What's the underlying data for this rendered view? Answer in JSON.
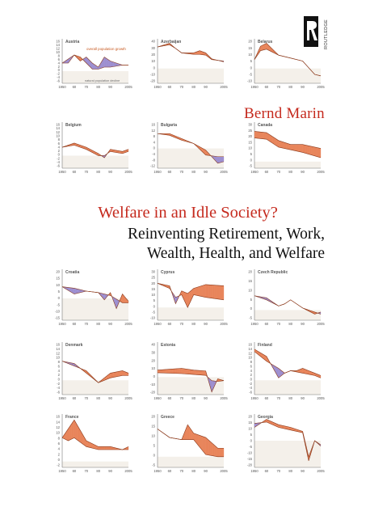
{
  "cover": {
    "author": "Bernd Marin",
    "title": "Welfare in an Idle Society?",
    "subtitle_line1": "Reinventing Retirement, Work,",
    "subtitle_line2": "Wealth, Health, and Welfare",
    "publisher": "ROUTLEDGE",
    "colors": {
      "accent": "#c52a1e",
      "orange": "#e8845a",
      "purple": "#9d8fd0",
      "line": "#8a3b1e",
      "axis": "#777777",
      "label": "#555555"
    }
  },
  "charts": [
    {
      "name": "Austria",
      "ylabels": [
        "16",
        "14",
        "12",
        "10",
        "8",
        "6",
        "4",
        "2",
        "0",
        "-2",
        "-4",
        "-6"
      ],
      "xlabels": [
        "1950",
        "60",
        "70",
        "80",
        "90",
        "2005"
      ],
      "ymin": -6,
      "ymax": 16,
      "annotations": [
        "overall population growth",
        "natural population decline"
      ],
      "s1": [
        [
          1950,
          4
        ],
        [
          1955,
          6
        ],
        [
          1960,
          8
        ],
        [
          1965,
          5
        ],
        [
          1970,
          7
        ],
        [
          1975,
          4
        ],
        [
          1980,
          2
        ],
        [
          1985,
          7
        ],
        [
          1990,
          5
        ],
        [
          2000,
          3
        ],
        [
          2005,
          3
        ]
      ],
      "s2": [
        [
          1950,
          4
        ],
        [
          1955,
          4
        ],
        [
          1960,
          8
        ],
        [
          1965,
          7
        ],
        [
          1970,
          4
        ],
        [
          1975,
          1
        ],
        [
          1980,
          1
        ],
        [
          1985,
          2
        ],
        [
          1990,
          2
        ],
        [
          2000,
          3
        ],
        [
          2005,
          3
        ]
      ]
    },
    {
      "name": "Azerbaijan",
      "ylabels": [
        "40",
        "30",
        "20",
        "10",
        "0",
        "-10",
        "-20"
      ],
      "xlabels": [
        "1950",
        "60",
        "70",
        "80",
        "90",
        "2005"
      ],
      "ymin": -20,
      "ymax": 40,
      "s1": [
        [
          1950,
          29
        ],
        [
          1960,
          32
        ],
        [
          1965,
          27
        ],
        [
          1970,
          21
        ],
        [
          1980,
          19
        ],
        [
          1985,
          19
        ],
        [
          1990,
          18
        ],
        [
          1995,
          12
        ],
        [
          2005,
          10
        ]
      ],
      "s2": [
        [
          1950,
          29
        ],
        [
          1960,
          34
        ],
        [
          1965,
          27
        ],
        [
          1970,
          21
        ],
        [
          1980,
          21
        ],
        [
          1985,
          24
        ],
        [
          1990,
          21
        ],
        [
          1995,
          13
        ],
        [
          2005,
          9
        ]
      ]
    },
    {
      "name": "Belarus",
      "ylabels": [
        "20",
        "15",
        "10",
        "5",
        "0",
        "-5",
        "-10"
      ],
      "xlabels": [
        "1950",
        "60",
        "70",
        "80",
        "90",
        "2005"
      ],
      "ymin": -10,
      "ymax": 20,
      "s1": [
        [
          1950,
          6
        ],
        [
          1955,
          12
        ],
        [
          1960,
          13
        ],
        [
          1970,
          9
        ],
        [
          1980,
          7
        ],
        [
          1990,
          5
        ],
        [
          2000,
          -4
        ],
        [
          2005,
          -5
        ]
      ],
      "s2": [
        [
          1950,
          6
        ],
        [
          1955,
          15
        ],
        [
          1960,
          17
        ],
        [
          1970,
          9
        ],
        [
          1980,
          7
        ],
        [
          1990,
          5
        ],
        [
          2000,
          -4
        ],
        [
          2005,
          -5
        ]
      ]
    },
    {
      "name": "Belgium",
      "ylabels": [
        "16",
        "14",
        "12",
        "10",
        "8",
        "6",
        "4",
        "2",
        "0",
        "-2",
        "-4",
        "-6"
      ],
      "xlabels": [
        "1950",
        "60",
        "70",
        "80",
        "90",
        "2005"
      ],
      "ymin": -6,
      "ymax": 16,
      "s1": [
        [
          1950,
          4
        ],
        [
          1960,
          5
        ],
        [
          1970,
          3
        ],
        [
          1980,
          0
        ],
        [
          1985,
          0
        ],
        [
          1990,
          2
        ],
        [
          2000,
          1
        ],
        [
          2005,
          2
        ]
      ],
      "s2": [
        [
          1950,
          4
        ],
        [
          1960,
          6
        ],
        [
          1970,
          4
        ],
        [
          1980,
          1
        ],
        [
          1985,
          -1
        ],
        [
          1990,
          3
        ],
        [
          2000,
          2
        ],
        [
          2005,
          3
        ]
      ]
    },
    {
      "name": "Bulgaria",
      "ylabels": [
        "16",
        "12",
        "8",
        "4",
        "0",
        "-4",
        "-8",
        "-12"
      ],
      "xlabels": [
        "1950",
        "60",
        "70",
        "80",
        "90",
        "2005"
      ],
      "ymin": -12,
      "ymax": 16,
      "s1": [
        [
          1950,
          9
        ],
        [
          1960,
          8
        ],
        [
          1970,
          5
        ],
        [
          1980,
          3
        ],
        [
          1990,
          -4
        ],
        [
          2000,
          -5
        ],
        [
          2005,
          -5
        ]
      ],
      "s2": [
        [
          1950,
          9
        ],
        [
          1960,
          9
        ],
        [
          1970,
          6
        ],
        [
          1980,
          3
        ],
        [
          1990,
          -1
        ],
        [
          2000,
          -9
        ],
        [
          2005,
          -8
        ]
      ]
    },
    {
      "name": "Canada",
      "ylabels": [
        "30",
        "25",
        "20",
        "15",
        "10",
        "5",
        "0",
        "-5"
      ],
      "xlabels": [
        "1950",
        "60",
        "70",
        "80",
        "90",
        "2005"
      ],
      "ymin": -5,
      "ymax": 30,
      "s1": [
        [
          1950,
          18
        ],
        [
          1960,
          17
        ],
        [
          1970,
          11
        ],
        [
          1980,
          9
        ],
        [
          1990,
          7
        ],
        [
          2005,
          3
        ]
      ],
      "s2": [
        [
          1950,
          23
        ],
        [
          1960,
          22
        ],
        [
          1970,
          16
        ],
        [
          1980,
          13
        ],
        [
          1990,
          13
        ],
        [
          2005,
          10
        ]
      ]
    },
    {
      "name": "Croatia",
      "ylabels": [
        "20",
        "15",
        "10",
        "5",
        "0",
        "-5",
        "-10",
        "-15"
      ],
      "xlabels": [
        "1950",
        "60",
        "70",
        "80",
        "90",
        "2005"
      ],
      "ymin": -15,
      "ymax": 20,
      "s1": [
        [
          1950,
          8
        ],
        [
          1960,
          7
        ],
        [
          1970,
          5
        ],
        [
          1980,
          4
        ],
        [
          1990,
          2
        ],
        [
          2000,
          -3
        ],
        [
          2005,
          -3
        ]
      ],
      "s2": [
        [
          1950,
          8
        ],
        [
          1960,
          3
        ],
        [
          1970,
          5
        ],
        [
          1980,
          4
        ],
        [
          1985,
          -1
        ],
        [
          1990,
          4
        ],
        [
          1995,
          -7
        ],
        [
          2000,
          3
        ],
        [
          2005,
          -2
        ]
      ]
    },
    {
      "name": "Cyprus",
      "ylabels": [
        "30",
        "25",
        "20",
        "15",
        "10",
        "5",
        "0",
        "-5",
        "-10"
      ],
      "xlabels": [
        "1950",
        "60",
        "70",
        "80",
        "90",
        "2005"
      ],
      "ymin": -10,
      "ymax": 30,
      "s1": [
        [
          1950,
          19
        ],
        [
          1960,
          15
        ],
        [
          1965,
          8
        ],
        [
          1970,
          10
        ],
        [
          1975,
          0
        ],
        [
          1980,
          10
        ],
        [
          1990,
          8
        ],
        [
          2005,
          6
        ]
      ],
      "s2": [
        [
          1950,
          19
        ],
        [
          1960,
          17
        ],
        [
          1965,
          3
        ],
        [
          1970,
          13
        ],
        [
          1975,
          11
        ],
        [
          1980,
          15
        ],
        [
          1990,
          18
        ],
        [
          2005,
          17
        ]
      ]
    },
    {
      "name": "Czech Republic",
      "ylabels": [
        "20",
        "15",
        "10",
        "5",
        "0",
        "-5"
      ],
      "xlabels": [
        "1950",
        "60",
        "70",
        "80",
        "90",
        "2005"
      ],
      "ymin": -5,
      "ymax": 20,
      "s1": [
        [
          1950,
          7
        ],
        [
          1960,
          6
        ],
        [
          1970,
          2
        ],
        [
          1975,
          3
        ],
        [
          1980,
          5
        ],
        [
          1990,
          1
        ],
        [
          2000,
          -2
        ],
        [
          2005,
          -1
        ]
      ],
      "s2": [
        [
          1950,
          7
        ],
        [
          1960,
          5
        ],
        [
          1970,
          2
        ],
        [
          1975,
          3
        ],
        [
          1980,
          5
        ],
        [
          1990,
          1
        ],
        [
          2000,
          -1
        ],
        [
          2005,
          -2
        ]
      ]
    },
    {
      "name": "Denmark",
      "ylabels": [
        "16",
        "14",
        "12",
        "10",
        "8",
        "6",
        "4",
        "2",
        "0",
        "-2",
        "-4",
        "-6"
      ],
      "xlabels": [
        "1950",
        "60",
        "70",
        "80",
        "90",
        "2005"
      ],
      "ymin": -6,
      "ymax": 16,
      "s1": [
        [
          1950,
          8
        ],
        [
          1960,
          7
        ],
        [
          1970,
          3
        ],
        [
          1980,
          -1
        ],
        [
          1990,
          1
        ],
        [
          2000,
          2
        ],
        [
          2005,
          2
        ]
      ],
      "s2": [
        [
          1950,
          8
        ],
        [
          1960,
          6
        ],
        [
          1970,
          4
        ],
        [
          1980,
          -1
        ],
        [
          1990,
          3
        ],
        [
          2000,
          4
        ],
        [
          2005,
          3
        ]
      ]
    },
    {
      "name": "Estonia",
      "ylabels": [
        "40",
        "30",
        "20",
        "10",
        "0",
        "-10",
        "-20"
      ],
      "xlabels": [
        "1950",
        "60",
        "70",
        "80",
        "90",
        "2005"
      ],
      "ymin": -20,
      "ymax": 40,
      "s1": [
        [
          1950,
          5
        ],
        [
          1970,
          4
        ],
        [
          1980,
          3
        ],
        [
          1990,
          2
        ],
        [
          1995,
          -4
        ],
        [
          2000,
          -5
        ],
        [
          2005,
          -4
        ]
      ],
      "s2": [
        [
          1950,
          8
        ],
        [
          1960,
          9
        ],
        [
          1970,
          10
        ],
        [
          1980,
          8
        ],
        [
          1990,
          7
        ],
        [
          1995,
          -17
        ],
        [
          2000,
          -2
        ],
        [
          2005,
          -4
        ]
      ]
    },
    {
      "name": "Finland",
      "ylabels": [
        "16",
        "14",
        "12",
        "10",
        "8",
        "6",
        "4",
        "2",
        "0",
        "-2",
        "-4",
        "-6"
      ],
      "xlabels": [
        "1950",
        "60",
        "70",
        "80",
        "90",
        "2005"
      ],
      "ymin": -6,
      "ymax": 16,
      "s1": [
        [
          1950,
          12
        ],
        [
          1960,
          8
        ],
        [
          1970,
          5
        ],
        [
          1975,
          3
        ],
        [
          1980,
          4
        ],
        [
          1990,
          3
        ],
        [
          2000,
          2
        ],
        [
          2005,
          1
        ]
      ],
      "s2": [
        [
          1950,
          13
        ],
        [
          1960,
          10
        ],
        [
          1970,
          1
        ],
        [
          1975,
          3
        ],
        [
          1980,
          4
        ],
        [
          1985,
          4
        ],
        [
          1990,
          5
        ],
        [
          2000,
          3
        ],
        [
          2005,
          2
        ]
      ]
    },
    {
      "name": "France",
      "ylabels": [
        "16",
        "14",
        "12",
        "10",
        "8",
        "6",
        "4",
        "2",
        "0",
        "-2"
      ],
      "xlabels": [
        "1950",
        "60",
        "70",
        "80",
        "90",
        "2005"
      ],
      "ymin": -2,
      "ymax": 16,
      "s1": [
        [
          1950,
          8
        ],
        [
          1955,
          7
        ],
        [
          1960,
          8
        ],
        [
          1970,
          5
        ],
        [
          1980,
          4
        ],
        [
          1990,
          4
        ],
        [
          2000,
          4
        ],
        [
          2005,
          4
        ]
      ],
      "s2": [
        [
          1950,
          8
        ],
        [
          1955,
          11
        ],
        [
          1960,
          14
        ],
        [
          1970,
          7
        ],
        [
          1980,
          5
        ],
        [
          1990,
          5
        ],
        [
          2000,
          4
        ],
        [
          2005,
          5
        ]
      ]
    },
    {
      "name": "Greece",
      "ylabels": [
        "20",
        "15",
        "10",
        "5",
        "0",
        "-5"
      ],
      "xlabels": [
        "1950",
        "60",
        "70",
        "80",
        "90",
        "2005"
      ],
      "ymin": -5,
      "ymax": 20,
      "s1": [
        [
          1950,
          13
        ],
        [
          1960,
          9
        ],
        [
          1970,
          8
        ],
        [
          1975,
          8
        ],
        [
          1980,
          8
        ],
        [
          1990,
          1
        ],
        [
          2000,
          0
        ],
        [
          2005,
          0
        ]
      ],
      "s2": [
        [
          1950,
          13
        ],
        [
          1960,
          9
        ],
        [
          1970,
          8
        ],
        [
          1975,
          15
        ],
        [
          1980,
          11
        ],
        [
          1990,
          9
        ],
        [
          2000,
          4
        ],
        [
          2005,
          4
        ]
      ]
    },
    {
      "name": "Georgia",
      "ylabels": [
        "20",
        "15",
        "10",
        "5",
        "0",
        "-5",
        "-10",
        "-15",
        "-20"
      ],
      "xlabels": [
        "1950",
        "60",
        "70",
        "80",
        "90",
        "2005"
      ],
      "ymin": -20,
      "ymax": 20,
      "s1": [
        [
          1950,
          13
        ],
        [
          1960,
          14
        ],
        [
          1970,
          10
        ],
        [
          1980,
          8
        ],
        [
          1990,
          6
        ],
        [
          1995,
          -15
        ],
        [
          2000,
          0
        ],
        [
          2005,
          -3
        ]
      ],
      "s2": [
        [
          1950,
          10
        ],
        [
          1960,
          16
        ],
        [
          1970,
          12
        ],
        [
          1980,
          10
        ],
        [
          1990,
          7
        ],
        [
          1995,
          -12
        ],
        [
          2000,
          0
        ],
        [
          2005,
          -4
        ]
      ]
    }
  ]
}
